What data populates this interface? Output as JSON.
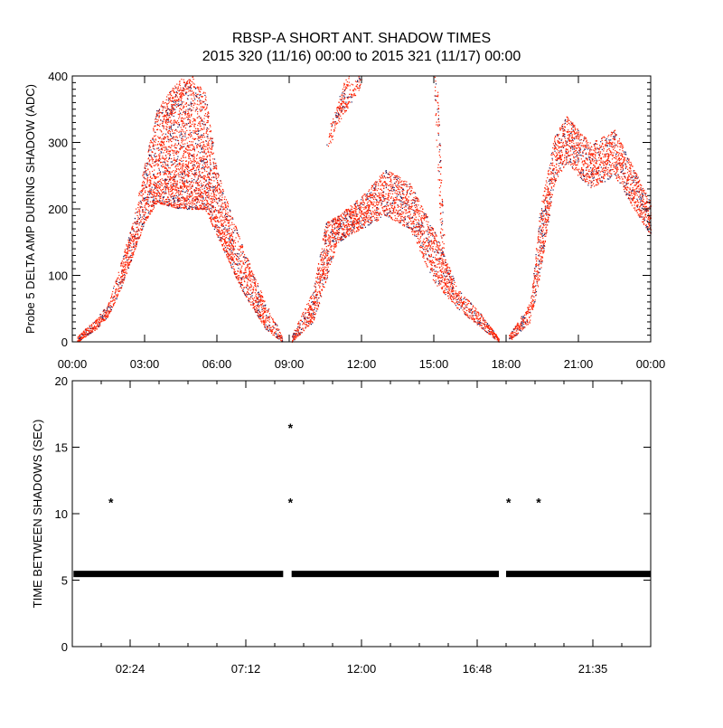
{
  "chart_data": [
    {
      "type": "scatter",
      "title": "RBSP-A SHORT ANT. SHADOW TIMES",
      "subtitle": "2015 320 (11/16) 00:00 to 2015 321 (11/17) 00:00",
      "xlabel": "",
      "ylabel": "Probe 5 DELTA AMP DURING SHADOW (ADC)",
      "xlim_hours": [
        0,
        24
      ],
      "ylim": [
        0,
        400
      ],
      "x_tick_labels": [
        "00:00",
        "03:00",
        "06:00",
        "09:00",
        "12:00",
        "15:00",
        "18:00",
        "21:00",
        "00:00"
      ],
      "x_tick_hours": [
        0,
        3,
        6,
        9,
        12,
        15,
        18,
        21,
        24
      ],
      "y_tick_labels": [
        "0",
        "100",
        "200",
        "300",
        "400"
      ],
      "y_ticks": [
        0,
        100,
        200,
        300,
        400
      ],
      "colors": {
        "primary": "#ff2000",
        "secondary": "#202060"
      },
      "envelope_note_series": [
        {
          "name": "shadow pass 1",
          "points": [
            [
              0.2,
              0,
              10
            ],
            [
              1.0,
              20,
              35
            ],
            [
              1.5,
              40,
              60
            ],
            [
              2.0,
              80,
              120
            ],
            [
              2.5,
              130,
              180
            ],
            [
              3.0,
              180,
              270
            ],
            [
              3.5,
              210,
              350
            ],
            [
              4.5,
              200,
              400
            ],
            [
              5.5,
              200,
              380
            ],
            [
              6.0,
              160,
              260
            ],
            [
              7.0,
              80,
              150
            ],
            [
              8.0,
              20,
              60
            ],
            [
              8.7,
              0,
              10
            ]
          ]
        },
        {
          "name": "shadow pass 2",
          "points": [
            [
              9.1,
              0,
              10
            ],
            [
              10.0,
              30,
              80
            ],
            [
              10.5,
              90,
              180
            ],
            [
              11.0,
              150,
              190
            ],
            [
              12.0,
              170,
              220
            ],
            [
              13.0,
              190,
              260
            ],
            [
              14.0,
              170,
              240
            ],
            [
              15.0,
              90,
              170
            ],
            [
              16.0,
              50,
              80
            ],
            [
              17.0,
              20,
              40
            ],
            [
              17.7,
              0,
              5
            ]
          ]
        },
        {
          "name": "shadow pass 3",
          "points": [
            [
              18.1,
              0,
              10
            ],
            [
              19.0,
              30,
              60
            ],
            [
              19.4,
              100,
              200
            ],
            [
              20.0,
              240,
              310
            ],
            [
              20.5,
              270,
              340
            ],
            [
              21.5,
              230,
              300
            ],
            [
              22.5,
              250,
              320
            ],
            [
              23.3,
              200,
              260
            ],
            [
              24.0,
              160,
              210
            ]
          ]
        }
      ],
      "streaks": [
        {
          "from": [
            10.6,
            300
          ],
          "to": [
            11.5,
            400
          ]
        },
        {
          "from": [
            11.0,
            340
          ],
          "to": [
            12.0,
            400
          ]
        },
        {
          "from": [
            15.05,
            400
          ],
          "to": [
            15.4,
            120
          ]
        },
        {
          "from": [
            3.8,
            330
          ],
          "to": [
            5.0,
            400
          ]
        }
      ]
    },
    {
      "type": "scatter",
      "xlabel": "",
      "ylabel": "TIME BETWEEN SHADOWS (SEC)",
      "xlim_hours": [
        0,
        24
      ],
      "ylim": [
        0,
        20
      ],
      "x_tick_labels": [
        "02:24",
        "07:12",
        "12:00",
        "16:48",
        "21:35"
      ],
      "x_tick_hours": [
        2.4,
        7.2,
        12.0,
        16.8,
        21.6
      ],
      "y_tick_labels": [
        "0",
        "5",
        "10",
        "15",
        "20"
      ],
      "y_ticks": [
        0,
        5,
        10,
        15,
        20
      ],
      "baseline_value": 5.5,
      "baseline_segments_hours": [
        [
          0.05,
          8.75
        ],
        [
          9.1,
          17.7
        ],
        [
          18.0,
          24.0
        ]
      ],
      "outliers": [
        [
          1.6,
          11.0
        ],
        [
          9.05,
          16.6
        ],
        [
          9.05,
          11.0
        ],
        [
          18.1,
          11.0
        ],
        [
          19.35,
          11.0
        ]
      ]
    }
  ]
}
